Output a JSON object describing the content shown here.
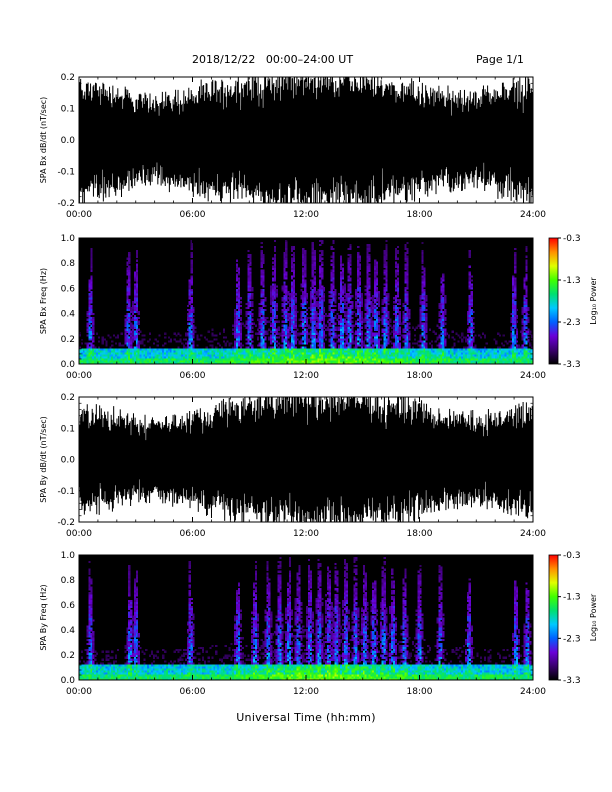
{
  "header": {
    "title": "2018/12/22   00:00–24:00 UT",
    "page": "Page 1/1"
  },
  "x_axis_title": "Universal Time (hh:mm)",
  "colorbar_title": "Log₁₀ Power",
  "colorbar_colors": [
    "#000000",
    "#3a006e",
    "#6a00d8",
    "#0060ff",
    "#00c8ff",
    "#00e070",
    "#40ff00",
    "#e0ff00",
    "#ff9000",
    "#ff0000"
  ],
  "chart_data": [
    {
      "type": "line",
      "name": "bx-derivative",
      "ylabel": "SPA Bx dB/dt (nT/sec)",
      "xlim": [
        0,
        24
      ],
      "ylim": [
        -0.2,
        0.2
      ],
      "x_ticks": [
        "00:00",
        "06:00",
        "12:00",
        "18:00",
        "24:00"
      ],
      "y_ticks": [
        "-0.2",
        "-0.1",
        "0.0",
        "0.1",
        "0.2"
      ],
      "trace_color": "#000000",
      "fill_profile": {
        "hours": [
          0,
          2,
          3,
          4,
          6,
          7,
          8,
          9,
          10,
          11,
          12,
          13,
          14,
          15,
          16,
          17,
          18,
          19,
          20,
          21,
          22,
          23,
          24
        ],
        "amplitude": [
          0.19,
          0.17,
          0.14,
          0.14,
          0.16,
          0.18,
          0.19,
          0.2,
          0.21,
          0.22,
          0.22,
          0.22,
          0.22,
          0.21,
          0.2,
          0.19,
          0.17,
          0.16,
          0.15,
          0.15,
          0.17,
          0.18,
          0.2
        ]
      }
    },
    {
      "type": "heatmap",
      "name": "bx-spectrogram",
      "ylabel": "SPA Bx Freq (Hz)",
      "xlim": [
        0,
        24
      ],
      "ylim": [
        0,
        1
      ],
      "x_ticks": [
        "00:00",
        "06:00",
        "12:00",
        "18:00",
        "24:00"
      ],
      "y_ticks": [
        "0.0",
        "0.2",
        "0.4",
        "0.6",
        "0.8",
        "1.0"
      ],
      "colorbar": {
        "label": "Log₁₀ Power",
        "range": [
          -3.3,
          -0.3
        ],
        "ticks": [
          "-0.3",
          "-1.3",
          "-2.3",
          "-3.3"
        ]
      },
      "activity_hours": [
        0.6,
        2.6,
        3.0,
        5.9,
        8.4,
        9.0,
        9.7,
        10.3,
        10.9,
        11.3,
        11.9,
        12.4,
        12.8,
        13.4,
        13.9,
        14.3,
        14.8,
        15.3,
        15.7,
        16.2,
        16.8,
        17.3,
        18.2,
        19.2,
        20.7,
        23.0,
        23.6
      ]
    },
    {
      "type": "line",
      "name": "by-derivative",
      "ylabel": "SPA By dB/dt (nT/sec)",
      "xlim": [
        0,
        24
      ],
      "ylim": [
        -0.2,
        0.2
      ],
      "x_ticks": [
        "00:00",
        "06:00",
        "12:00",
        "18:00",
        "24:00"
      ],
      "y_ticks": [
        "-0.2",
        "-0.1",
        "0.0",
        "0.1",
        "0.2"
      ],
      "trace_color": "#000000",
      "fill_profile": {
        "hours": [
          0,
          2,
          3,
          4,
          6,
          7,
          8,
          9,
          10,
          11,
          12,
          13,
          14,
          15,
          16,
          17,
          18,
          19,
          20,
          21,
          22,
          23,
          24
        ],
        "amplitude": [
          0.17,
          0.15,
          0.13,
          0.13,
          0.15,
          0.17,
          0.19,
          0.2,
          0.21,
          0.22,
          0.22,
          0.22,
          0.22,
          0.22,
          0.21,
          0.2,
          0.18,
          0.16,
          0.15,
          0.14,
          0.15,
          0.17,
          0.19
        ]
      }
    },
    {
      "type": "heatmap",
      "name": "by-spectrogram",
      "ylabel": "SPA By Freq (Hz)",
      "xlim": [
        0,
        24
      ],
      "ylim": [
        0,
        1
      ],
      "x_ticks": [
        "00:00",
        "06:00",
        "12:00",
        "18:00",
        "24:00"
      ],
      "y_ticks": [
        "0.0",
        "0.2",
        "0.4",
        "0.6",
        "0.8",
        "1.0"
      ],
      "colorbar": {
        "label": "Log₁₀ Power",
        "range": [
          -3.3,
          -0.3
        ],
        "ticks": [
          "-0.3",
          "-1.3",
          "-2.3",
          "-3.3"
        ]
      },
      "activity_hours": [
        0.6,
        2.7,
        3.0,
        5.9,
        8.4,
        9.3,
        10.0,
        10.6,
        11.1,
        11.6,
        12.2,
        12.7,
        13.2,
        13.6,
        14.1,
        14.6,
        15.1,
        15.6,
        16.1,
        16.6,
        17.2,
        18.0,
        19.1,
        20.6,
        23.1,
        23.7
      ]
    }
  ]
}
